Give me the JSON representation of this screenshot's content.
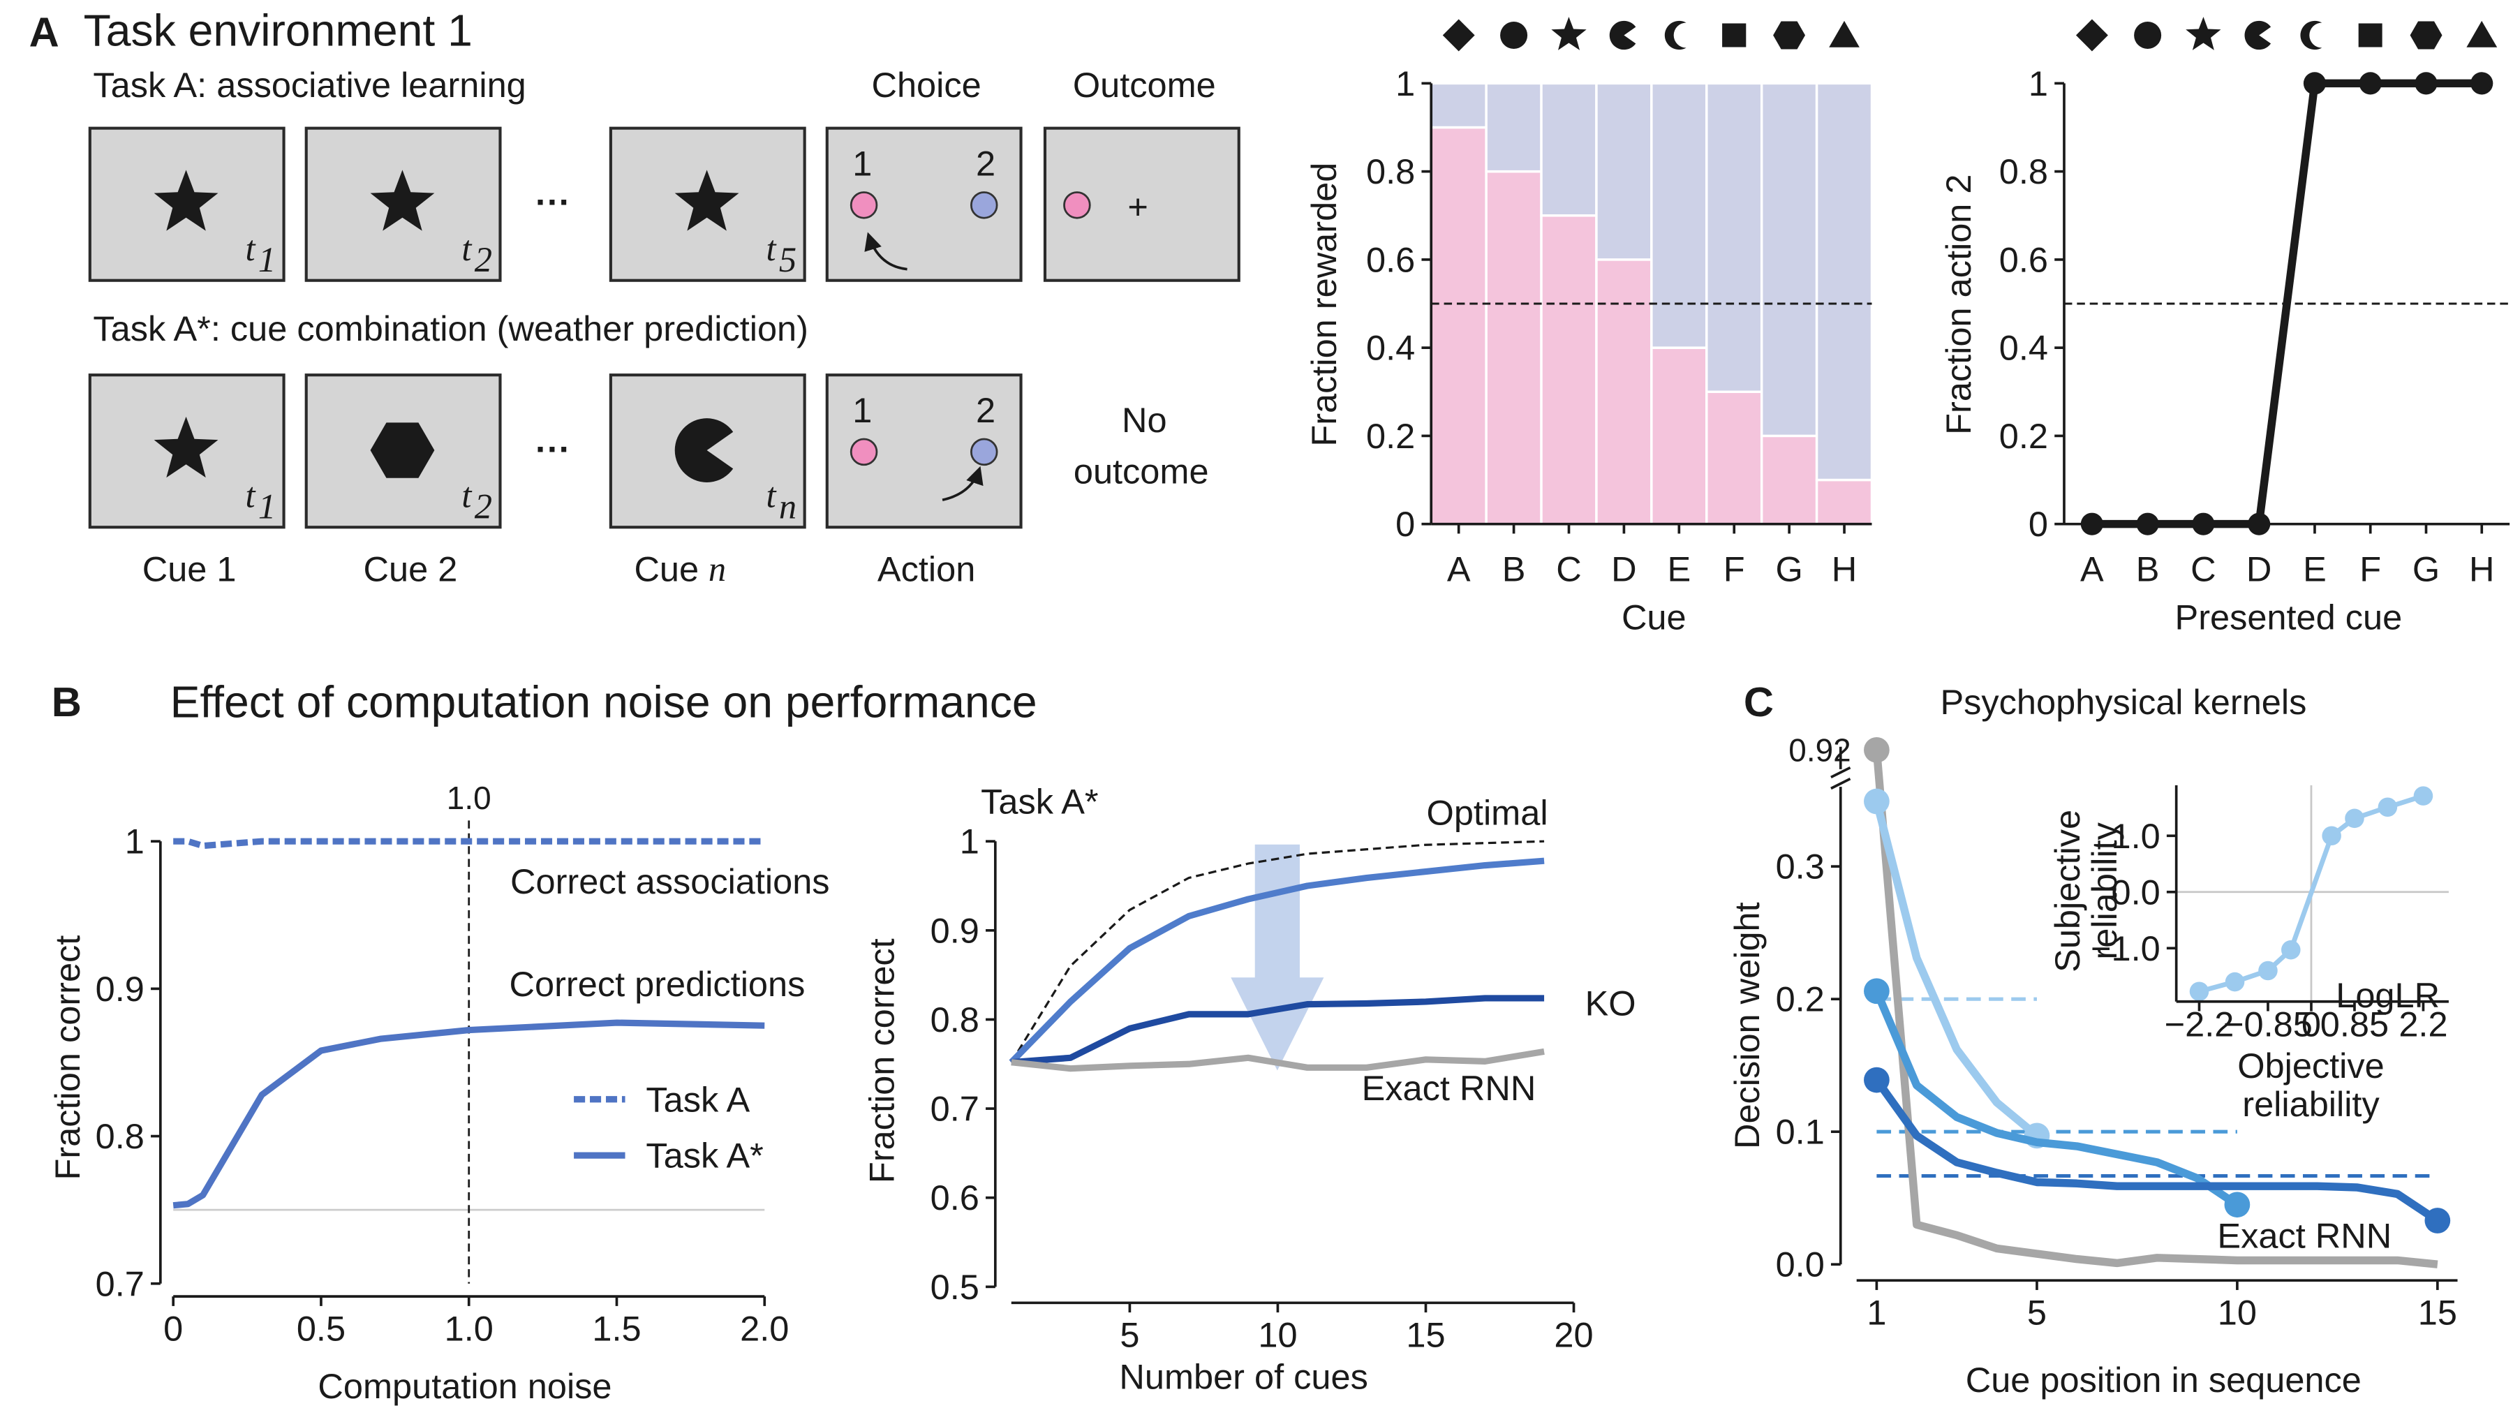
{
  "panel_labels": [
    "A",
    "B",
    "C"
  ],
  "panel_b_title": "Effect of computation noise on performance",
  "diagram": {
    "title": "Task environment 1",
    "rows": [
      {
        "label": "Task A: associative learning",
        "time_subscripts": [
          "1",
          "2",
          "5"
        ]
      },
      {
        "label": "Task A*: cue combination (weather prediction)",
        "time_subscripts": [
          "1",
          "2",
          "n"
        ]
      }
    ],
    "time_symbol": "t",
    "ellipsis": "···",
    "column_headers": [
      "Choice",
      "Outcome"
    ],
    "options": [
      "1",
      "2"
    ],
    "outcome_symbol": "+",
    "no_outcome": [
      "No",
      "outcome"
    ],
    "cue_labels": [
      "Cue 1",
      "Cue 2"
    ],
    "cue_n": [
      "Cue",
      "n"
    ],
    "action_label": "Action"
  },
  "chart_data": [
    {
      "type": "bar",
      "stacked": true,
      "ylabel": "Fraction rewarded",
      "xlabel": "Cue",
      "categories": [
        "A",
        "B",
        "C",
        "D",
        "E",
        "F",
        "G",
        "H"
      ],
      "series": [
        {
          "color": "#f4c4dc",
          "values": [
            0.9,
            0.8,
            0.7,
            0.6,
            0.4,
            0.3,
            0.2,
            0.1
          ]
        },
        {
          "color": "#cdd1e7",
          "values": [
            0.1,
            0.2,
            0.3,
            0.4,
            0.6,
            0.7,
            0.8,
            0.9
          ]
        }
      ],
      "ylim": [
        0,
        1
      ],
      "yticks": [
        0,
        0.2,
        0.4,
        0.6,
        0.8,
        1
      ],
      "hline": {
        "value": 0.5,
        "style": "dashed",
        "color": "#1a1a1a"
      }
    },
    {
      "type": "line",
      "ylabel": "Fraction action 2",
      "xlabel": "Presented cue",
      "categories": [
        "A",
        "B",
        "C",
        "D",
        "E",
        "F",
        "G",
        "H"
      ],
      "series": [
        {
          "color": "#1a1a1a",
          "markers": "all",
          "values": [
            0,
            0,
            0,
            0,
            1,
            1,
            1,
            1
          ]
        }
      ],
      "ylim": [
        0,
        1
      ],
      "yticks": [
        0,
        0.2,
        0.4,
        0.6,
        0.8,
        1
      ],
      "hline": {
        "value": 0.5,
        "style": "dashed",
        "color": "#1a1a1a"
      }
    },
    {
      "type": "line",
      "xlabel": "Computation noise",
      "ylabel": "Fraction correct",
      "x": [
        0,
        0.05,
        0.1,
        0.3,
        0.5,
        0.7,
        1,
        1.5,
        2
      ],
      "series": [
        {
          "name": "Task A",
          "color": "#4f74c4",
          "dashed": true,
          "values": [
            1,
            1,
            0.997,
            1,
            1,
            1,
            1,
            1,
            1
          ]
        },
        {
          "name": "Task A*",
          "color": "#4f74c4",
          "values": [
            0.753,
            0.754,
            0.76,
            0.828,
            0.858,
            0.866,
            0.872,
            0.877,
            0.875
          ]
        }
      ],
      "xlim": [
        0,
        2
      ],
      "xticks": [
        0,
        0.5,
        {
          "value": 1,
          "label": "1.0"
        },
        1.5,
        {
          "value": 2,
          "label": "2.0"
        }
      ],
      "ylim": [
        0.7,
        1
      ],
      "yticks": [
        0.7,
        0.8,
        0.9,
        1
      ],
      "hline": {
        "value": 0.75,
        "style": "solid",
        "color": "#cccccc"
      },
      "vline": {
        "value": 1,
        "label": "1.0"
      },
      "annotations": [
        {
          "text": "Correct associations",
          "color": "#5b7fc7"
        },
        {
          "text": "Correct predictions",
          "color": "#5b7fc7"
        }
      ],
      "legend": "lower right"
    },
    {
      "type": "line",
      "title": "Task A*",
      "xlabel": "Number of cues",
      "ylabel": "Fraction correct",
      "x": [
        1,
        3,
        5,
        7,
        9,
        11,
        13,
        15,
        17,
        19
      ],
      "series": [
        {
          "name": "Optimal",
          "color": "#1a1a1a",
          "dashed": true,
          "values": [
            0.752,
            0.86,
            0.923,
            0.959,
            0.975,
            0.986,
            0.991,
            0.996,
            0.998,
            1.0
          ]
        },
        {
          "color": "#4f7ccb",
          "values": [
            0.752,
            0.82,
            0.88,
            0.916,
            0.935,
            0.95,
            0.959,
            0.966,
            0.973,
            0.978
          ]
        },
        {
          "name": "KO",
          "color": "#1f4aa0",
          "values": [
            0.752,
            0.757,
            0.79,
            0.806,
            0.806,
            0.817,
            0.818,
            0.82,
            0.824,
            0.824
          ]
        },
        {
          "name": "Exact RNN",
          "color": "#a6a6a6",
          "values": [
            0.752,
            0.745,
            0.748,
            0.75,
            0.757,
            0.746,
            0.746,
            0.755,
            0.753,
            0.764
          ]
        }
      ],
      "xlim": [
        1,
        20
      ],
      "xticks": [
        5,
        10,
        15,
        20
      ],
      "ylim": [
        0.5,
        1
      ],
      "yticks": [
        0.5,
        0.6,
        0.7,
        0.8,
        0.9,
        1
      ]
    },
    {
      "type": "line",
      "title": "Psychophysical kernels",
      "xlabel": "Cue position in sequence",
      "ylabel": "Decision weight",
      "series": [
        {
          "color": "#a6a6a6",
          "name": "Exact RNN",
          "markers": "first",
          "x": [
            1,
            2,
            3,
            4,
            5,
            6,
            7,
            8,
            9,
            10,
            11,
            12,
            13,
            14,
            15
          ],
          "values": [
            0.92,
            0.03,
            0.022,
            0.012,
            0.008,
            0.004,
            0.001,
            0.005,
            0.004,
            0.003,
            0.003,
            0.003,
            0.003,
            0.003,
            0.0
          ],
          "value_labels": [
            "0.92",
            null,
            null,
            null,
            null,
            null,
            null,
            null,
            null,
            null,
            null,
            null,
            null,
            null,
            null
          ]
        },
        {
          "color": "#9ccaee",
          "markers": "ends",
          "x": [
            1,
            2,
            3,
            4,
            5
          ],
          "values": [
            0.349,
            0.231,
            0.162,
            0.122,
            0.097
          ]
        },
        {
          "color": "#4a9ad8",
          "markers": "ends",
          "x": [
            1,
            2,
            3,
            4,
            5,
            6,
            7,
            8,
            9,
            10
          ],
          "values": [
            0.206,
            0.135,
            0.111,
            0.099,
            0.092,
            0.089,
            0.083,
            0.077,
            0.065,
            0.045
          ]
        },
        {
          "color": "#2f6fbf",
          "markers": "ends",
          "x": [
            1,
            2,
            3,
            4,
            5,
            6,
            7,
            8,
            9,
            10,
            11,
            12,
            13,
            14,
            15
          ],
          "values": [
            0.139,
            0.097,
            0.077,
            0.069,
            0.062,
            0.061,
            0.059,
            0.059,
            0.059,
            0.059,
            0.059,
            0.059,
            0.058,
            0.053,
            0.033
          ]
        }
      ],
      "reference_lines": [
        {
          "value": 0.2,
          "x_range": [
            1,
            5
          ],
          "color": "#9ccaee"
        },
        {
          "value": 0.1,
          "x_range": [
            1,
            10
          ],
          "color": "#4a9ad8"
        },
        {
          "value": 0.0667,
          "x_range": [
            1,
            15
          ],
          "color": "#2f6fbf"
        }
      ],
      "xlim": [
        0.5,
        15.5
      ],
      "xticks": [
        1,
        5,
        10,
        15
      ],
      "ylim": [
        0,
        0.93
      ],
      "y_break": [
        0.36,
        0.9
      ],
      "yticks": [
        {
          "value": 0,
          "label": "0.0"
        },
        0.1,
        0.2,
        0.3
      ]
    },
    {
      "type": "line",
      "xlabel": [
        "Objective",
        "reliability"
      ],
      "ylabel": [
        "Subjective",
        "reliability"
      ],
      "x_note": "LogLR",
      "x": [
        -2.2,
        -1.5,
        -0.85,
        -0.4,
        0.4,
        0.85,
        1.5,
        2.2
      ],
      "series": [
        {
          "color": "#9ccaee",
          "markers": "all",
          "values": [
            -1.77,
            -1.6,
            -1.4,
            -1.03,
            1.0,
            1.31,
            1.51,
            1.71
          ]
        }
      ],
      "xlim": [
        -2.65,
        2.7
      ],
      "xticks": [
        {
          "value": -2.2,
          "label": "−2.2"
        },
        {
          "value": -0.85,
          "label": "−0.85"
        },
        0,
        0.85,
        2.2
      ],
      "ylim": [
        -1.95,
        1.9
      ],
      "yticks": [
        {
          "value": 1,
          "label": "1.0"
        },
        {
          "value": 0,
          "label": "0.0"
        },
        {
          "value": -1,
          "label": "−1.0"
        }
      ],
      "zero_lines": true
    }
  ]
}
